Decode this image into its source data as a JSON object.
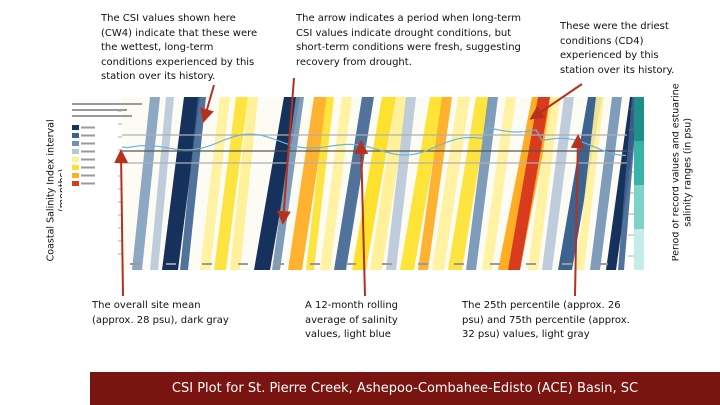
{
  "callouts": {
    "wettest": "The CSI values shown here (CW4) indicate that these were the wettest, long-term conditions experienced by this station over its history.",
    "arrow_period": "The arrow indicates a period when long-term CSI values indicate drought conditions, but short-term conditions were fresh, suggesting recovery from drought.",
    "driest": "These were the driest conditions (CD4) experienced by this station over its history.",
    "site_mean": "The overall site mean (approx. 28 psu), dark gray",
    "rolling_avg": "A 12-month rolling average of salinity values, light blue",
    "percentiles": "The 25th percentile (approx. 26 psu) and 75th percentile (approx. 32 psu) values, light gray"
  },
  "axis_labels": {
    "left_line1": "Coastal Salinity Index interval",
    "left_line2": "(months)",
    "right_line1": "Period of record values and estuarine",
    "right_line2": "salinity ranges (in psu)"
  },
  "footer_title": "CSI Plot for St. Pierre Creek, Ashepoo-Combahee-Edisto (ACE) Basin, SC",
  "colors": {
    "footer_bg": "#7a1410",
    "arrow": "#b5301d",
    "cw4": "#16325c",
    "cw3": "#3d6391",
    "cw2": "#7192b5",
    "cw1": "#b7c7d9",
    "cd1": "#fff199",
    "cd2": "#fee12e",
    "cd3": "#ffad24",
    "cd4": "#d93b1e",
    "rolling_average": "#6fb3db",
    "site_mean": "#555555",
    "percentiles": "#b0b0b0"
  }
}
